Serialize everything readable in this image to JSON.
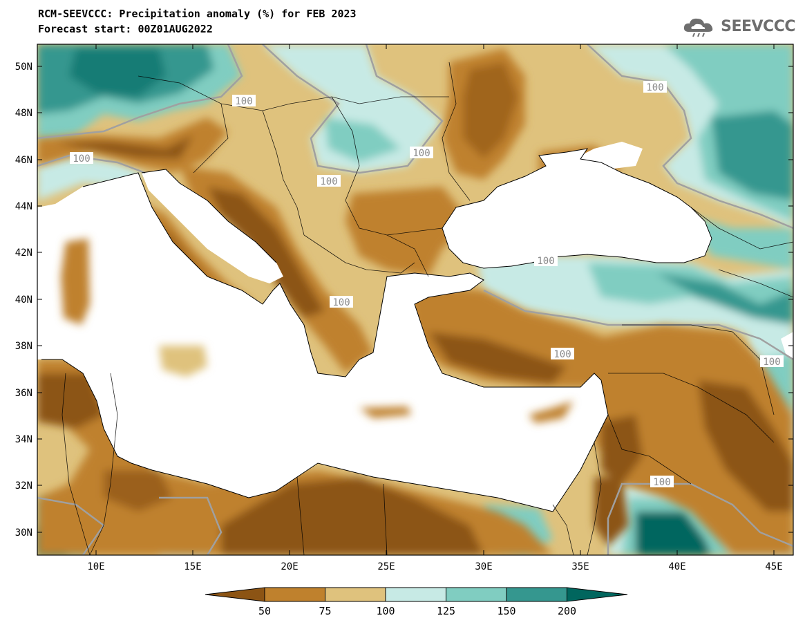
{
  "header": {
    "title_line1": "RCM-SEEVCCC: Precipitation anomaly (%) for FEB 2023",
    "title_line2": "Forecast start: 00Z01AUG2022",
    "logo_text": "SEEVCCC"
  },
  "map": {
    "lat_labels": [
      "50N",
      "48N",
      "46N",
      "44N",
      "42N",
      "40N",
      "38N",
      "36N",
      "34N",
      "32N",
      "30N"
    ],
    "lon_labels": [
      "10E",
      "15E",
      "20E",
      "25E",
      "30E",
      "35E",
      "40E",
      "45E"
    ],
    "contour_labels": [
      "100",
      "100",
      "100",
      "100",
      "100",
      "100",
      "100",
      "100",
      "100",
      "100"
    ],
    "colors": {
      "below_50": "#8c5414",
      "c50_75": "#bf812d",
      "c75_100": "#dfc27d",
      "c100_125": "#c7eae5",
      "c125_150": "#80cdc1",
      "c150_200": "#35978f",
      "above_200": "#01665e",
      "sea": "#ffffff",
      "contour_100": "#a0a0a0"
    }
  },
  "colorbar": {
    "tick_labels": [
      "50",
      "75",
      "100",
      "125",
      "150",
      "200"
    ],
    "colors": [
      "#8c5414",
      "#bf812d",
      "#dfc27d",
      "#c7eae5",
      "#80cdc1",
      "#35978f",
      "#01665e"
    ]
  }
}
